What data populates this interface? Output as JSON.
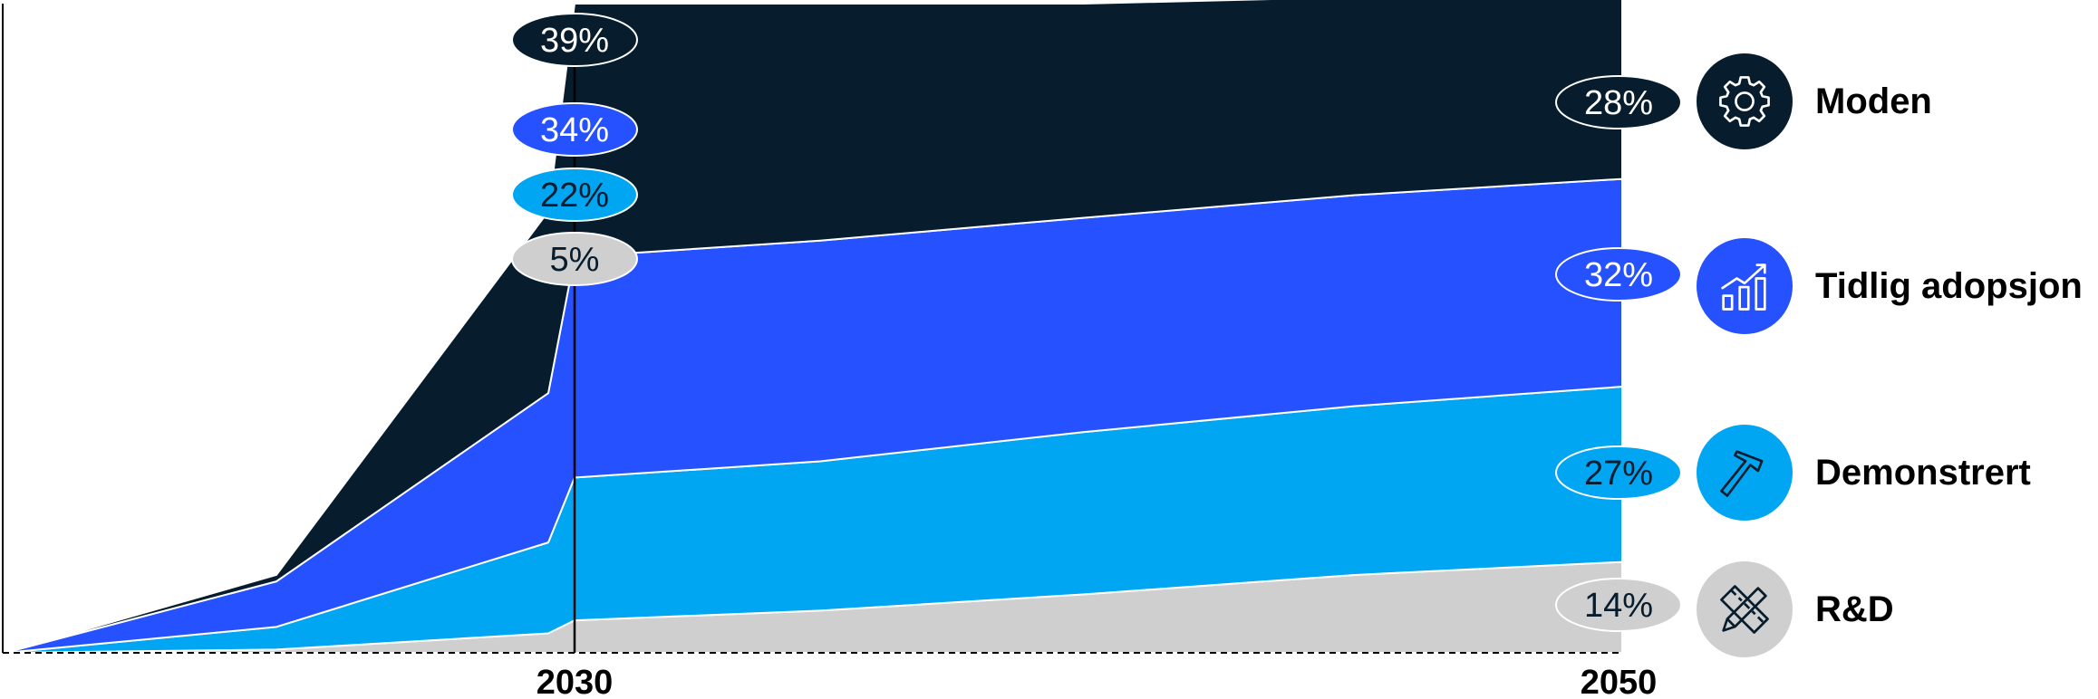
{
  "chart_data": {
    "type": "area",
    "stacked": true,
    "normalized": true,
    "x_ticks": [
      "2030",
      "2050"
    ],
    "series": [
      {
        "name": "R&D",
        "color": "#cfcfcf",
        "label_2030": "5%",
        "label_2050": "14%",
        "values": [
          0,
          0.5,
          3,
          5,
          6.5,
          9,
          12,
          14
        ]
      },
      {
        "name": "Demonstrert",
        "color": "#00a6f2",
        "label_2030": "22%",
        "label_2050": "27%",
        "values": [
          0,
          3.5,
          14,
          22,
          23,
          25,
          26,
          27
        ]
      },
      {
        "name": "Tidlig adopsjon",
        "color": "#2651ff",
        "label_2030": "34%",
        "label_2050": "32%",
        "values": [
          0,
          7,
          23,
          34,
          34,
          33,
          32.5,
          32
        ]
      },
      {
        "name": "Moden",
        "color": "#071c2c",
        "label_2030": "39%",
        "label_2050": "28%",
        "values": [
          0,
          1,
          28,
          39,
          36.5,
          33,
          30.5,
          28
        ]
      }
    ],
    "grid": false,
    "legend_position": "right"
  },
  "legend": [
    {
      "label": "Moden",
      "icon": "gear-icon",
      "bg": "#071c2c",
      "fg": "#ffffff"
    },
    {
      "label": "Tidlig adopsjon",
      "icon": "bar-chart-growth-icon",
      "bg": "#2651ff",
      "fg": "#ffffff"
    },
    {
      "label": "Demonstrert",
      "icon": "hammer-icon",
      "bg": "#00a6f2",
      "fg": "#071c2c"
    },
    {
      "label": "R&D",
      "icon": "ruler-pencil-icon",
      "bg": "#cfcfcf",
      "fg": "#071c2c"
    }
  ]
}
